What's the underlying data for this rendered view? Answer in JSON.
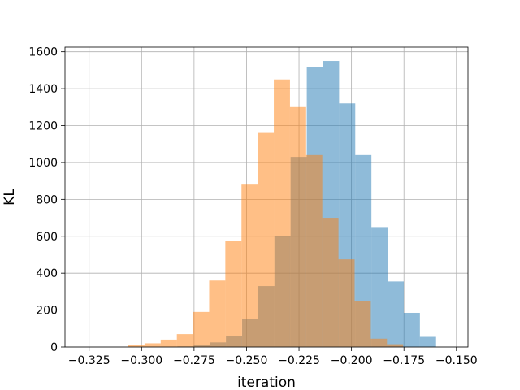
{
  "chart_data": {
    "type": "histogram",
    "title": "",
    "xlabel": "iteration",
    "ylabel": "KL",
    "xlim": [
      -0.3365,
      -0.1445
    ],
    "ylim": [
      0,
      1625
    ],
    "grid": true,
    "x_ticks": [
      -0.325,
      -0.3,
      -0.275,
      -0.25,
      -0.225,
      -0.2,
      -0.175,
      -0.15
    ],
    "x_tick_labels": [
      "−0.325",
      "−0.300",
      "−0.275",
      "−0.250",
      "−0.225",
      "−0.200",
      "−0.175",
      "−0.150"
    ],
    "y_ticks": [
      0,
      200,
      400,
      600,
      800,
      1000,
      1200,
      1400,
      1600
    ],
    "y_tick_labels": [
      "0",
      "200",
      "400",
      "600",
      "800",
      "1000",
      "1200",
      "1400",
      "1600"
    ],
    "series": [
      {
        "color": "#1f77b4",
        "alpha": 0.5,
        "bin_edges": [
          -0.2829,
          -0.2752,
          -0.2675,
          -0.2598,
          -0.2521,
          -0.2444,
          -0.2367,
          -0.229,
          -0.2213,
          -0.2136,
          -0.2059,
          -0.1982,
          -0.1905,
          -0.1828,
          -0.1751,
          -0.1674,
          -0.1597
        ],
        "counts": [
          3,
          10,
          25,
          60,
          150,
          330,
          600,
          1030,
          1515,
          1550,
          1320,
          1040,
          650,
          355,
          185,
          55
        ]
      },
      {
        "color": "#ff7f0e",
        "alpha": 0.5,
        "bin_edges": [
          -0.3063,
          -0.2986,
          -0.2909,
          -0.2832,
          -0.2755,
          -0.2678,
          -0.2601,
          -0.2524,
          -0.2447,
          -0.237,
          -0.2293,
          -0.2216,
          -0.2139,
          -0.2062,
          -0.1985,
          -0.1908,
          -0.1831,
          -0.1754
        ],
        "counts": [
          12,
          20,
          40,
          70,
          190,
          360,
          575,
          880,
          1160,
          1450,
          1300,
          1040,
          700,
          475,
          250,
          45,
          15
        ]
      }
    ]
  }
}
